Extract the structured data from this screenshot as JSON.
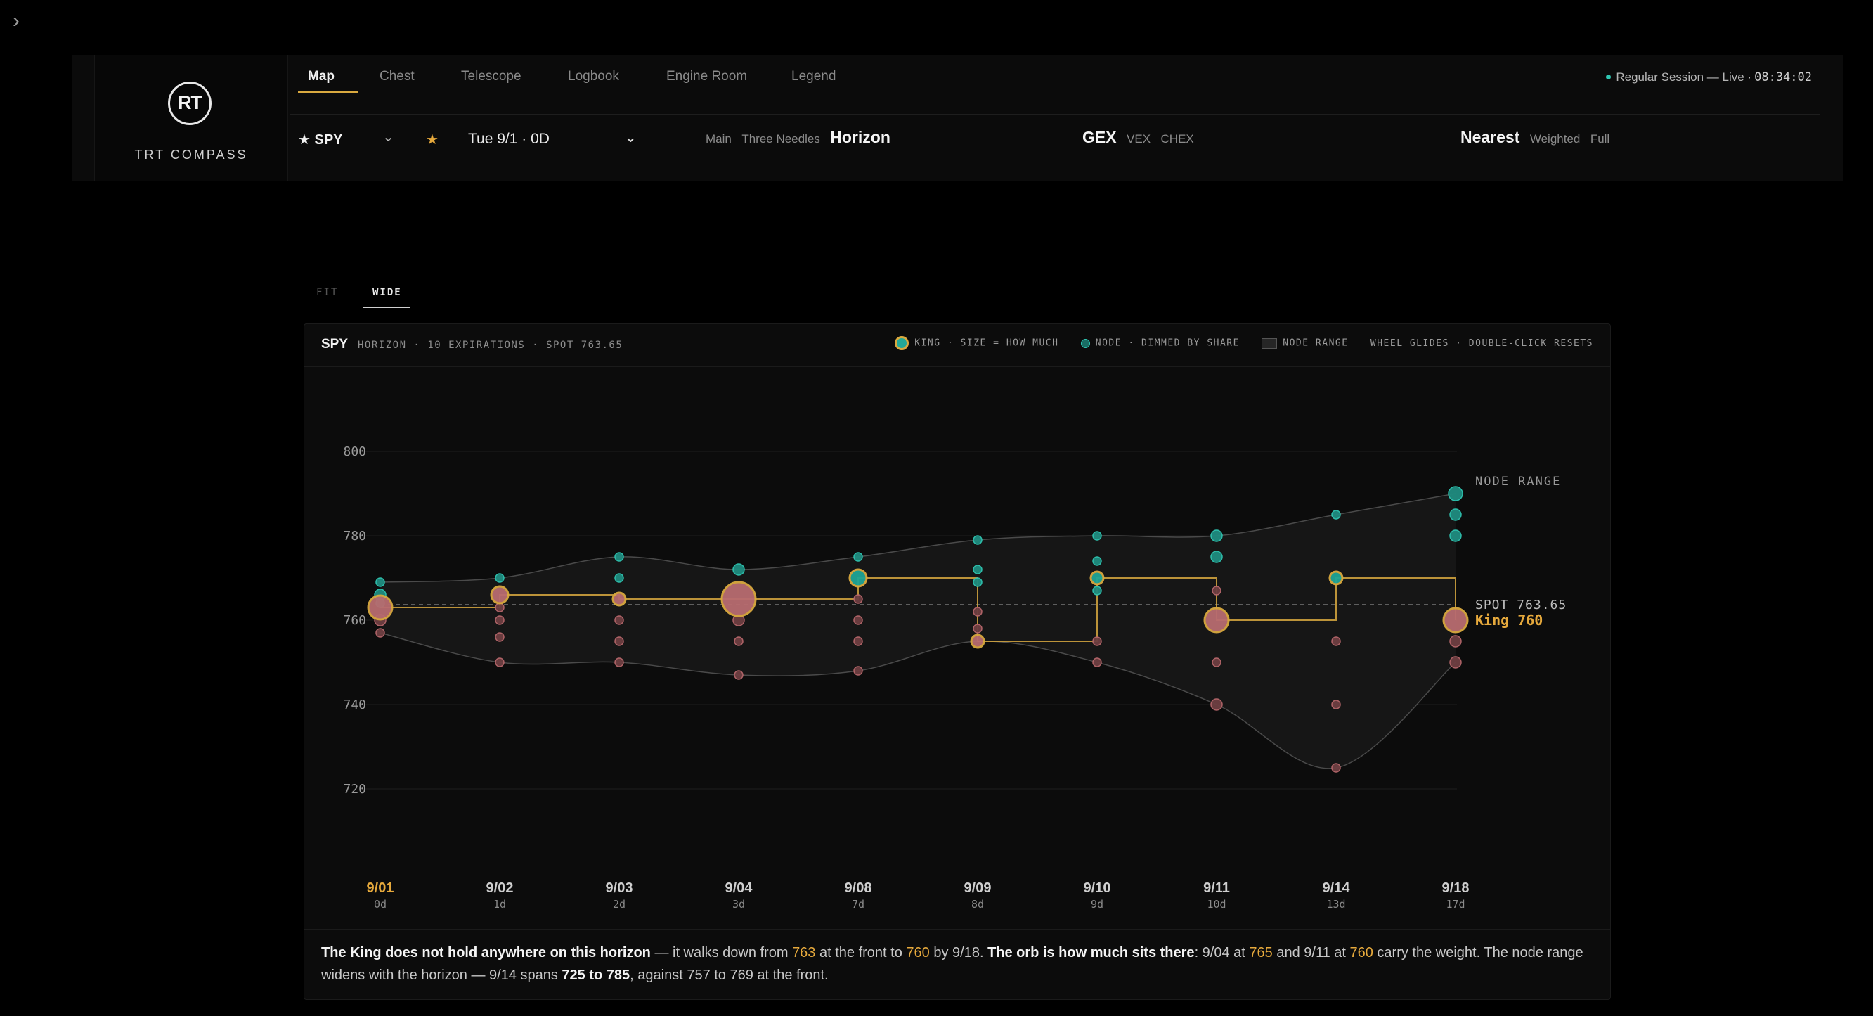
{
  "nav": {
    "collapse_icon": "chevron-right-icon"
  },
  "brand": {
    "mark": "RT",
    "name": "TRT COMPASS"
  },
  "tabs": [
    {
      "label": "Map",
      "active": true
    },
    {
      "label": "Chest",
      "active": false
    },
    {
      "label": "Telescope",
      "active": false
    },
    {
      "label": "Logbook",
      "active": false
    },
    {
      "label": "Engine Room",
      "active": false
    },
    {
      "label": "Legend",
      "active": false
    }
  ],
  "session": {
    "label": "Regular Session — Live ·",
    "clock": "08:34:02",
    "status_color": "#2fc6b2"
  },
  "controls": {
    "ticker": "★ SPY",
    "favorite_icon": "star-icon",
    "expiry": "Tue 9/1 · 0D",
    "views": [
      {
        "label": "Main",
        "on": false
      },
      {
        "label": "Three Needles",
        "on": false
      },
      {
        "label": "Horizon",
        "on": true
      }
    ],
    "greeks": [
      {
        "label": "GEX",
        "on": true
      },
      {
        "label": "VEX",
        "on": false
      },
      {
        "label": "CHEX",
        "on": false
      }
    ],
    "strikes": [
      {
        "label": "Nearest",
        "on": true
      },
      {
        "label": "Weighted",
        "on": false
      },
      {
        "label": "Full",
        "on": false
      }
    ]
  },
  "zoom": {
    "fit": "FIT",
    "wide": "WIDE",
    "active": "WIDE"
  },
  "card": {
    "symbol": "SPY",
    "subtitle": "HORIZON · 10 EXPIRATIONS · SPOT 763.65",
    "legend": {
      "king": "KING · SIZE = HOW MUCH",
      "node": "NODE · DIMMED BY SHARE",
      "range": "NODE RANGE",
      "hint": "WHEEL GLIDES · DOUBLE-CLICK RESETS"
    }
  },
  "colors": {
    "teal": "#2fc6b2",
    "rose": "#b8686c",
    "gold": "#d9a93f",
    "accent": "#e6a93c"
  },
  "chart_data": {
    "type": "scatter",
    "y_ticks": [
      800,
      780,
      760,
      740,
      720
    ],
    "ylim": [
      710,
      812
    ],
    "grid": true,
    "spot": 763.65,
    "spot_label": "SPOT 763.65",
    "king_label": "King 760",
    "range_label": "NODE RANGE",
    "expirations": [
      {
        "date": "9/01",
        "dte": "0d",
        "king": 763,
        "king_size": 3,
        "range": [
          757,
          769
        ],
        "current": true,
        "nodes": [
          {
            "y": 769,
            "c": "t",
            "s": 1
          },
          {
            "y": 766,
            "c": "t",
            "s": 2
          },
          {
            "y": 764,
            "c": "t",
            "s": 1
          },
          {
            "y": 760,
            "c": "r",
            "s": 2
          },
          {
            "y": 757,
            "c": "r",
            "s": 1
          }
        ]
      },
      {
        "date": "9/02",
        "dte": "1d",
        "king": 766,
        "king_size": 2,
        "range": [
          750,
          770
        ],
        "nodes": [
          {
            "y": 770,
            "c": "t",
            "s": 1
          },
          {
            "y": 763,
            "c": "r",
            "s": 1
          },
          {
            "y": 760,
            "c": "r",
            "s": 1
          },
          {
            "y": 756,
            "c": "r",
            "s": 1
          },
          {
            "y": 750,
            "c": "r",
            "s": 1
          }
        ]
      },
      {
        "date": "9/03",
        "dte": "2d",
        "king": 765,
        "king_size": 1,
        "range": [
          750,
          775
        ],
        "nodes": [
          {
            "y": 775,
            "c": "t",
            "s": 1
          },
          {
            "y": 770,
            "c": "t",
            "s": 1
          },
          {
            "y": 760,
            "c": "r",
            "s": 1
          },
          {
            "y": 755,
            "c": "r",
            "s": 1
          },
          {
            "y": 750,
            "c": "r",
            "s": 1
          }
        ]
      },
      {
        "date": "9/04",
        "dte": "3d",
        "king": 765,
        "king_size": 4,
        "range": [
          747,
          772
        ],
        "nodes": [
          {
            "y": 772,
            "c": "t",
            "s": 2
          },
          {
            "y": 760,
            "c": "r",
            "s": 2
          },
          {
            "y": 755,
            "c": "r",
            "s": 1
          },
          {
            "y": 747,
            "c": "r",
            "s": 1
          }
        ]
      },
      {
        "date": "9/08",
        "dte": "7d",
        "king": 770,
        "king_size": 2,
        "range": [
          748,
          775
        ],
        "nodes": [
          {
            "y": 775,
            "c": "t",
            "s": 1
          },
          {
            "y": 765,
            "c": "r",
            "s": 1
          },
          {
            "y": 760,
            "c": "r",
            "s": 1
          },
          {
            "y": 755,
            "c": "r",
            "s": 1
          },
          {
            "y": 748,
            "c": "r",
            "s": 1
          }
        ]
      },
      {
        "date": "9/09",
        "dte": "8d",
        "king": 755,
        "king_size": 1,
        "range": [
          755,
          779
        ],
        "nodes": [
          {
            "y": 779,
            "c": "t",
            "s": 1
          },
          {
            "y": 772,
            "c": "t",
            "s": 1
          },
          {
            "y": 769,
            "c": "t",
            "s": 1
          },
          {
            "y": 762,
            "c": "r",
            "s": 1
          },
          {
            "y": 758,
            "c": "r",
            "s": 1
          }
        ]
      },
      {
        "date": "9/10",
        "dte": "9d",
        "king": 770,
        "king_size": 1,
        "range": [
          750,
          780
        ],
        "nodes": [
          {
            "y": 780,
            "c": "t",
            "s": 1
          },
          {
            "y": 774,
            "c": "t",
            "s": 1
          },
          {
            "y": 767,
            "c": "t",
            "s": 1
          },
          {
            "y": 755,
            "c": "r",
            "s": 1
          },
          {
            "y": 750,
            "c": "r",
            "s": 1
          }
        ]
      },
      {
        "date": "9/11",
        "dte": "10d",
        "king": 760,
        "king_size": 3,
        "range": [
          740,
          780
        ],
        "nodes": [
          {
            "y": 780,
            "c": "t",
            "s": 2
          },
          {
            "y": 775,
            "c": "t",
            "s": 2
          },
          {
            "y": 767,
            "c": "r",
            "s": 1
          },
          {
            "y": 750,
            "c": "r",
            "s": 1
          },
          {
            "y": 740,
            "c": "r",
            "s": 2
          }
        ]
      },
      {
        "date": "9/14",
        "dte": "13d",
        "king": 770,
        "king_size": 1,
        "range": [
          725,
          785
        ],
        "nodes": [
          {
            "y": 785,
            "c": "t",
            "s": 1
          },
          {
            "y": 755,
            "c": "r",
            "s": 1
          },
          {
            "y": 740,
            "c": "r",
            "s": 1
          },
          {
            "y": 725,
            "c": "r",
            "s": 1
          }
        ]
      },
      {
        "date": "9/18",
        "dte": "17d",
        "king": 760,
        "king_size": 3,
        "range": [
          750,
          790
        ],
        "nodes": [
          {
            "y": 790,
            "c": "t",
            "s": 3
          },
          {
            "y": 785,
            "c": "t",
            "s": 2
          },
          {
            "y": 780,
            "c": "t",
            "s": 2
          },
          {
            "y": 755,
            "c": "r",
            "s": 2
          },
          {
            "y": 750,
            "c": "r",
            "s": 2
          }
        ]
      }
    ]
  },
  "caption": {
    "p1": "The King does not hold anywhere on this horizon",
    "p2": " — it walks down from ",
    "v1": "763",
    "p3": " at the front to ",
    "v2": "760",
    "p4": " by 9/18. ",
    "p5": "The orb is how much sits there",
    "p6": ": 9/04 at ",
    "v3": "765",
    "p7": " and 9/11 at ",
    "v4": "760",
    "p8": " carry the weight. The node range widens with the horizon — 9/14 spans ",
    "p9": "725 to 785",
    "p10": ", against 757 to 769 at the front."
  }
}
